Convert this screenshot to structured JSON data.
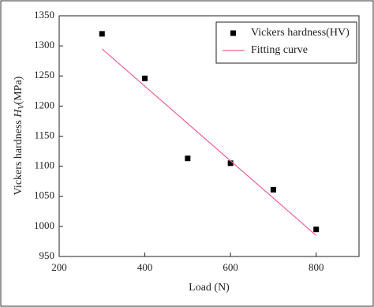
{
  "chart_data": {
    "type": "scatter",
    "x_label": "Load (N)",
    "y_label": [
      "Vickers hardness ",
      "H",
      "V",
      "(MPa)"
    ],
    "xlim": [
      200,
      900
    ],
    "xticks": [
      200,
      400,
      600,
      800
    ],
    "ylim": [
      950,
      1350
    ],
    "yticks": [
      950,
      1000,
      1050,
      1100,
      1150,
      1200,
      1250,
      1300,
      1350
    ],
    "legend": "upper right",
    "series": [
      {
        "name": "Vickers hardness(HV)",
        "type": "scatter",
        "color": "#000000",
        "x": [
          300,
          400,
          500,
          600,
          700,
          800
        ],
        "values": [
          1320,
          1246,
          1113,
          1105,
          1061,
          995
        ]
      },
      {
        "name": "Fitting curve",
        "type": "line",
        "color": "#e8609a",
        "x": [
          300,
          800
        ],
        "values": [
          1295,
          985
        ]
      }
    ]
  }
}
